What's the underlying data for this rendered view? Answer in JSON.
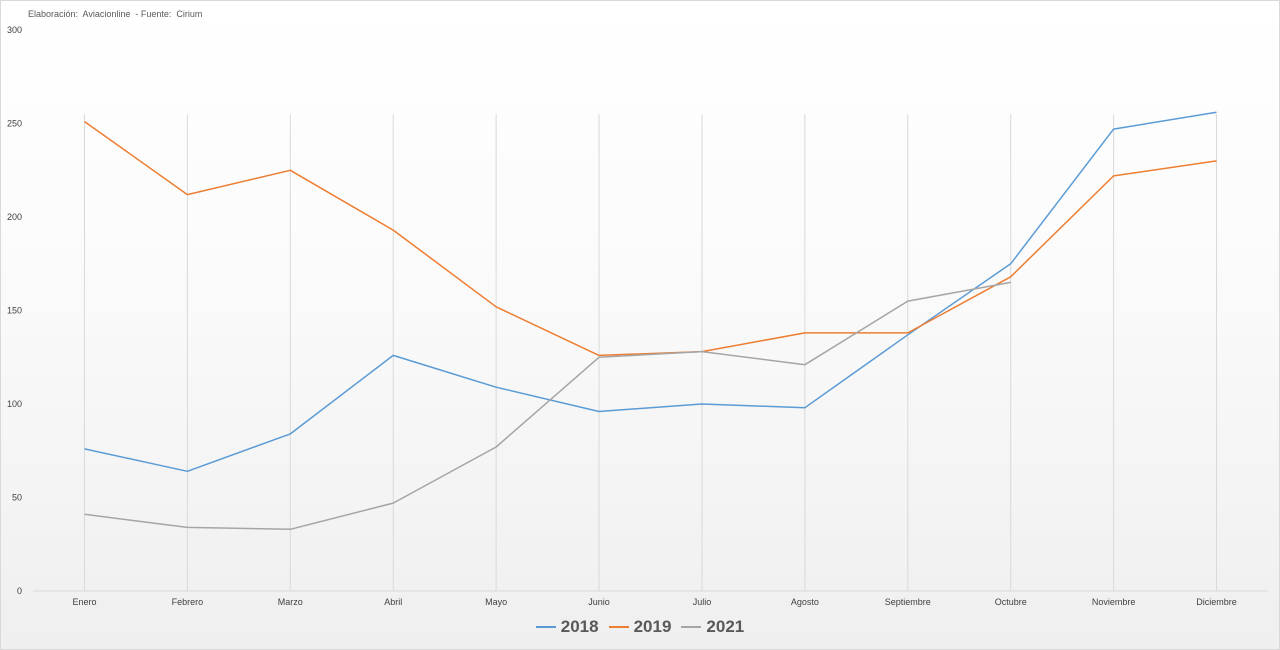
{
  "source_note": "Elaboración:  Aviacionline  - Fuente:  Cirium",
  "chart_data": {
    "type": "line",
    "categories": [
      "Enero",
      "Febrero",
      "Marzo",
      "Abril",
      "Mayo",
      "Junio",
      "Julio",
      "Agosto",
      "Septiembre",
      "Octubre",
      "Noviembre",
      "Diciembre"
    ],
    "series": [
      {
        "name": "2018",
        "color": "#5b9bd5",
        "values": [
          76,
          64,
          84,
          126,
          109,
          96,
          100,
          98,
          137,
          175,
          247,
          256
        ]
      },
      {
        "name": "2019",
        "color": "#ed7d31",
        "values": [
          251,
          212,
          225,
          193,
          152,
          126,
          128,
          138,
          138,
          168,
          222,
          230
        ]
      },
      {
        "name": "2021",
        "color": "#a5a5a5",
        "values": [
          41,
          34,
          33,
          47,
          77,
          125,
          128,
          121,
          155,
          165,
          null,
          null
        ]
      }
    ],
    "yticks": [
      0,
      50,
      100,
      150,
      200,
      250,
      300
    ],
    "ylim": [
      0,
      300
    ],
    "grid": "vertical",
    "legend_position": "bottom"
  }
}
